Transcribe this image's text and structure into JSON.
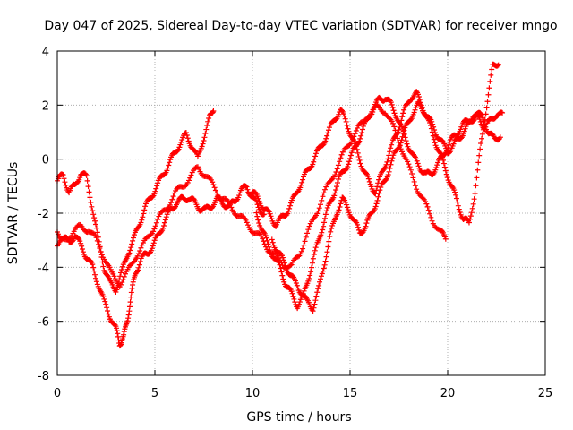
{
  "chart_data": {
    "type": "scatter",
    "title": "Day 047 of 2025, Sidereal Day-to-day VTEC variation (SDTVAR) for receiver mngo",
    "xlabel": "GPS time / hours",
    "ylabel": "SDTVAR / TECUs",
    "xlim": [
      0,
      25
    ],
    "ylim": [
      -8,
      4
    ],
    "xticks": [
      "0",
      "5",
      "10",
      "15",
      "20",
      "25"
    ],
    "yticks": [
      "-8",
      "-6",
      "-4",
      "-2",
      "0",
      "2",
      "4"
    ],
    "grid": true,
    "marker": "+",
    "color": "#ff0000",
    "series": [
      {
        "x": [
          0.0,
          0.3,
          0.6,
          0.9,
          1.2,
          1.5,
          1.8,
          2.1,
          2.4,
          2.7,
          3.0,
          3.3,
          3.6,
          3.9,
          4.2,
          4.5,
          4.8,
          5.1,
          5.4,
          5.7,
          6.0,
          6.3,
          6.6,
          6.9,
          7.2,
          7.5,
          7.8,
          8.0
        ],
        "y": [
          -0.8,
          -0.6,
          -1.2,
          -1.0,
          -0.5,
          -0.7,
          -1.8,
          -3.0,
          -4.0,
          -4.6,
          -4.8,
          -4.2,
          -3.5,
          -3.0,
          -2.4,
          -1.8,
          -1.4,
          -1.0,
          -0.6,
          -0.2,
          0.2,
          0.6,
          0.9,
          0.5,
          0.0,
          0.8,
          1.5,
          1.9
        ]
      },
      {
        "x": [
          0.0,
          0.3,
          0.6,
          0.9,
          1.2,
          1.5,
          1.8,
          2.1,
          2.4,
          2.7,
          3.0,
          3.2,
          3.4,
          3.6,
          3.8,
          4.0,
          4.3,
          4.6,
          4.9,
          5.2,
          5.5,
          5.8,
          6.1,
          6.4,
          6.7,
          7.0,
          7.3,
          7.6,
          7.9,
          8.2,
          8.5,
          8.8,
          9.1,
          9.4,
          9.7,
          10.0,
          10.3,
          10.6
        ],
        "y": [
          -2.7,
          -2.9,
          -3.1,
          -2.8,
          -3.2,
          -3.6,
          -4.0,
          -4.6,
          -5.3,
          -5.8,
          -6.3,
          -6.8,
          -6.6,
          -5.9,
          -5.0,
          -4.2,
          -3.7,
          -3.5,
          -3.2,
          -2.8,
          -2.3,
          -1.9,
          -1.6,
          -1.5,
          -1.4,
          -1.6,
          -1.8,
          -1.9,
          -1.7,
          -1.5,
          -1.6,
          -1.8,
          -1.5,
          -1.2,
          -1.0,
          -1.4,
          -1.8,
          -2.0
        ]
      },
      {
        "x": [
          0.0,
          0.4,
          0.8,
          1.2,
          1.6,
          2.0,
          2.4,
          2.8,
          3.2,
          3.6,
          4.0,
          4.4,
          4.8,
          5.2,
          5.6,
          6.0,
          6.4,
          6.8,
          7.2,
          7.6,
          8.0,
          8.4,
          8.8,
          9.2,
          9.6,
          10.0,
          10.4,
          10.8,
          11.2,
          11.6,
          12.0,
          12.4,
          12.8,
          13.2,
          13.6,
          14.0,
          14.4,
          14.8,
          15.2,
          15.6,
          16.0,
          16.4,
          16.8,
          17.2,
          17.6,
          18.0,
          18.4,
          18.8,
          19.2,
          19.6,
          19.9
        ],
        "y": [
          -3.2,
          -3.0,
          -2.7,
          -2.5,
          -2.6,
          -3.0,
          -3.6,
          -4.3,
          -4.6,
          -4.2,
          -3.6,
          -3.2,
          -2.7,
          -2.2,
          -1.8,
          -1.3,
          -1.0,
          -0.7,
          -0.3,
          -0.6,
          -1.0,
          -1.4,
          -1.7,
          -2.0,
          -2.3,
          -2.6,
          -2.9,
          -3.3,
          -3.6,
          -3.9,
          -4.0,
          -3.5,
          -2.8,
          -2.1,
          -1.4,
          -0.8,
          -0.2,
          0.4,
          0.9,
          1.3,
          1.7,
          1.9,
          1.8,
          1.2,
          0.5,
          -0.3,
          -1.0,
          -1.6,
          -2.2,
          -2.7,
          -2.9
        ]
      },
      {
        "x": [
          10.2,
          10.5,
          10.8,
          11.1,
          11.4,
          11.7,
          12.0,
          12.3,
          12.6,
          12.9,
          13.2,
          13.5,
          13.8,
          14.1,
          14.4,
          14.7,
          15.0,
          15.3,
          15.6,
          15.9,
          16.2,
          16.5,
          16.8,
          17.1,
          17.4,
          17.7,
          18.0,
          18.3,
          18.6,
          18.9,
          19.2,
          19.5,
          19.8,
          20.1,
          20.4,
          20.7,
          21.0,
          21.3,
          21.6,
          21.9,
          22.2,
          22.5,
          22.8
        ],
        "y": [
          -2.0,
          -2.6,
          -3.2,
          -3.6,
          -4.0,
          -4.6,
          -5.0,
          -5.4,
          -5.1,
          -4.3,
          -3.5,
          -2.7,
          -2.0,
          -1.4,
          -0.8,
          -0.4,
          0.0,
          0.5,
          1.0,
          1.5,
          1.9,
          2.2,
          2.3,
          2.0,
          1.6,
          1.0,
          0.5,
          0.0,
          -0.3,
          -0.6,
          -0.5,
          -0.2,
          0.2,
          0.6,
          0.9,
          1.2,
          1.4,
          1.6,
          1.5,
          1.2,
          1.4,
          1.7,
          1.6
        ]
      },
      {
        "x": [
          10.0,
          10.3,
          10.6,
          10.9,
          11.2,
          11.5,
          11.8,
          12.1,
          12.4,
          12.7,
          13.0,
          13.3,
          13.6,
          13.9,
          14.2,
          14.5,
          14.8,
          15.1,
          15.4,
          15.7,
          16.0,
          16.3,
          16.6,
          16.9,
          17.2,
          17.5,
          17.8,
          18.1,
          18.4,
          18.7,
          19.0,
          19.3,
          19.6,
          19.9,
          20.2,
          20.5,
          20.8,
          21.1,
          21.4,
          21.7,
          22.0,
          22.3,
          22.6
        ],
        "y": [
          -1.2,
          -1.5,
          -1.8,
          -2.1,
          -2.4,
          -2.2,
          -1.9,
          -1.5,
          -1.0,
          -0.6,
          -0.2,
          0.2,
          0.6,
          1.0,
          1.5,
          1.8,
          1.4,
          0.8,
          0.2,
          -0.4,
          -0.9,
          -1.2,
          -0.6,
          0.0,
          0.6,
          1.2,
          1.8,
          2.3,
          2.4,
          2.0,
          1.4,
          0.8,
          0.2,
          -0.4,
          -1.0,
          -1.6,
          -2.2,
          -2.4,
          -1.2,
          0.5,
          2.0,
          3.4,
          3.6
        ]
      },
      {
        "x": [
          11.0,
          11.3,
          11.6,
          11.9,
          12.2,
          12.5,
          12.8,
          13.1,
          13.4,
          13.7,
          14.0,
          14.3,
          14.6,
          14.9,
          15.2,
          15.5,
          15.8,
          16.1,
          16.4,
          16.7,
          17.0,
          17.3,
          17.6,
          17.9,
          18.2,
          18.5,
          18.8,
          19.1,
          19.4,
          19.7,
          20.0,
          20.3,
          20.6,
          20.9,
          21.2,
          21.5,
          21.8,
          22.1,
          22.4,
          22.7
        ],
        "y": [
          -3.0,
          -3.4,
          -3.8,
          -4.2,
          -4.6,
          -4.9,
          -5.3,
          -5.5,
          -4.8,
          -3.8,
          -2.8,
          -2.0,
          -1.5,
          -1.8,
          -2.3,
          -2.7,
          -2.5,
          -2.0,
          -1.5,
          -0.9,
          -0.4,
          0.2,
          0.7,
          1.2,
          1.7,
          2.0,
          1.8,
          1.4,
          1.0,
          0.6,
          0.3,
          0.5,
          0.8,
          1.1,
          1.4,
          1.7,
          1.5,
          1.0,
          0.7,
          0.9
        ]
      }
    ]
  }
}
